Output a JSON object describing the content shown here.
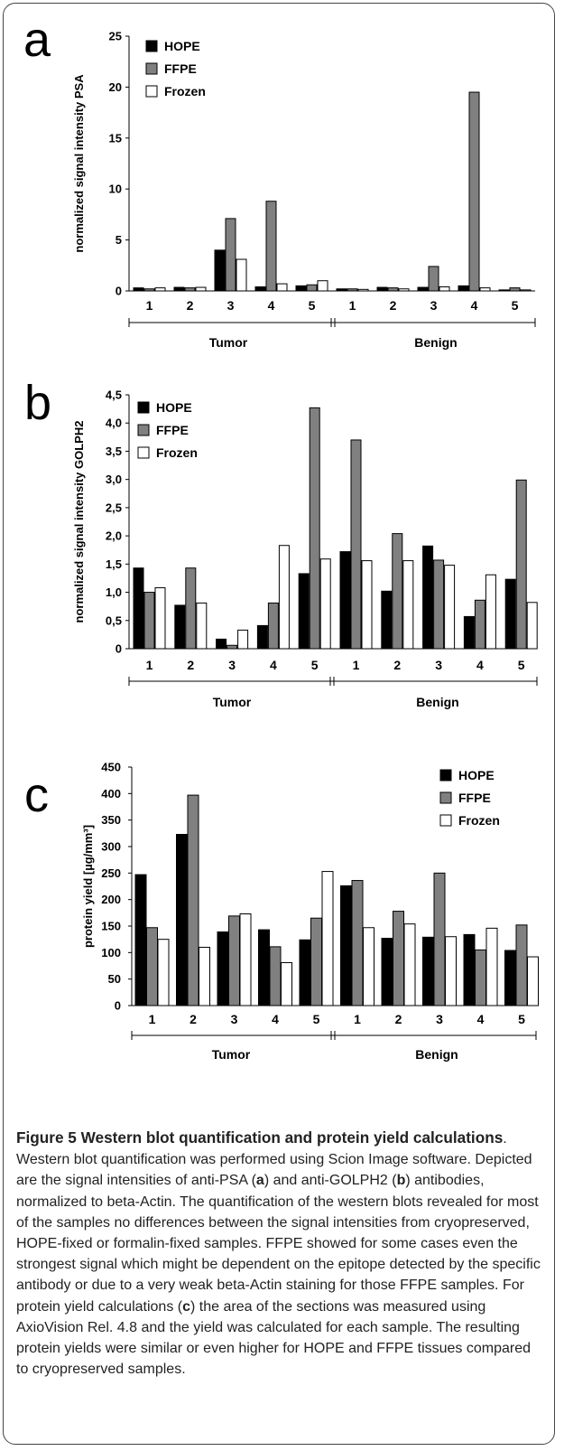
{
  "chart_data": [
    {
      "type": "bar",
      "panel_label": "a",
      "ylabel": "normalized signal intensity PSA",
      "ylim": [
        0,
        25
      ],
      "yticks": [
        "0",
        "5",
        "10",
        "15",
        "20",
        "25"
      ],
      "categories": [
        "1",
        "2",
        "3",
        "4",
        "5",
        "1",
        "2",
        "3",
        "4",
        "5"
      ],
      "groups": [
        "Tumor",
        "Benign"
      ],
      "legend_position": "top-left",
      "series": [
        {
          "name": "HOPE",
          "color": "#000000",
          "values": [
            0.3,
            0.35,
            4.0,
            0.4,
            0.5,
            0.2,
            0.35,
            0.35,
            0.5,
            0.1
          ]
        },
        {
          "name": "FFPE",
          "color": "#808080",
          "values": [
            0.2,
            0.3,
            7.1,
            8.8,
            0.6,
            0.2,
            0.3,
            2.4,
            19.5,
            0.3
          ]
        },
        {
          "name": "Frozen",
          "color": "#ffffff",
          "values": [
            0.3,
            0.35,
            3.1,
            0.7,
            1.0,
            0.15,
            0.2,
            0.4,
            0.3,
            0.1
          ]
        }
      ]
    },
    {
      "type": "bar",
      "panel_label": "b",
      "ylabel": "normalized signal intensity GOLPH2",
      "ylim": [
        0,
        4.5
      ],
      "yticks": [
        "0",
        "0,5",
        "1,0",
        "1,5",
        "2,0",
        "2,5",
        "3,0",
        "3,5",
        "4,0",
        "4,5"
      ],
      "categories": [
        "1",
        "2",
        "3",
        "4",
        "5",
        "1",
        "2",
        "3",
        "4",
        "5"
      ],
      "groups": [
        "Tumor",
        "Benign"
      ],
      "legend_position": "top-left",
      "series": [
        {
          "name": "HOPE",
          "color": "#000000",
          "values": [
            1.43,
            0.77,
            0.17,
            0.41,
            1.33,
            1.72,
            1.02,
            1.82,
            0.57,
            1.23
          ]
        },
        {
          "name": "FFPE",
          "color": "#808080",
          "values": [
            1.0,
            1.43,
            0.06,
            0.81,
            4.27,
            3.7,
            2.04,
            1.57,
            0.86,
            2.99
          ]
        },
        {
          "name": "Frozen",
          "color": "#ffffff",
          "values": [
            1.08,
            0.81,
            0.33,
            1.83,
            1.59,
            1.56,
            1.56,
            1.48,
            1.31,
            0.82
          ]
        }
      ]
    },
    {
      "type": "bar",
      "panel_label": "c",
      "ylabel": "protein yield [µg/mm³]",
      "ylim": [
        0,
        450
      ],
      "yticks": [
        "0",
        "50",
        "100",
        "150",
        "200",
        "250",
        "300",
        "350",
        "400",
        "450"
      ],
      "categories": [
        "1",
        "2",
        "3",
        "4",
        "5",
        "1",
        "2",
        "3",
        "4",
        "5"
      ],
      "groups": [
        "Tumor",
        "Benign"
      ],
      "legend_position": "top-right",
      "series": [
        {
          "name": "HOPE",
          "color": "#000000",
          "values": [
            247,
            323,
            139,
            143,
            124,
            226,
            127,
            129,
            134,
            104
          ]
        },
        {
          "name": "FFPE",
          "color": "#808080",
          "values": [
            147,
            397,
            169,
            111,
            165,
            236,
            178,
            250,
            105,
            152
          ]
        },
        {
          "name": "Frozen",
          "color": "#ffffff",
          "values": [
            125,
            110,
            173,
            81,
            253,
            147,
            154,
            130,
            146,
            92
          ]
        }
      ]
    }
  ],
  "caption": {
    "title": "Figure 5 Western blot quantification and protein yield calculations",
    "text_1": ". Western blot quantification was performed using Scion Image software. Depicted are the signal intensities of anti-PSA (",
    "ref_a": "a",
    "text_2": ") and anti-GOLPH2 (",
    "ref_b": "b",
    "text_3": ") antibodies, normalized to beta-Actin. The quantification of the western blots revealed for most of the samples no differences between the signal intensities from cryopreserved, HOPE-fixed or formalin-fixed samples. FFPE showed for some cases even the strongest signal which might be dependent on the epitope detected by the specific antibody or due to a very weak beta-Actin staining for those FFPE samples. For protein yield calculations (",
    "ref_c": "c",
    "text_4": ") the area of the sections was measured using AxioVision Rel. 4.8 and the yield was calculated for each sample. The resulting protein yields were similar or even higher for HOPE and FFPE tissues compared to cryopreserved samples."
  }
}
